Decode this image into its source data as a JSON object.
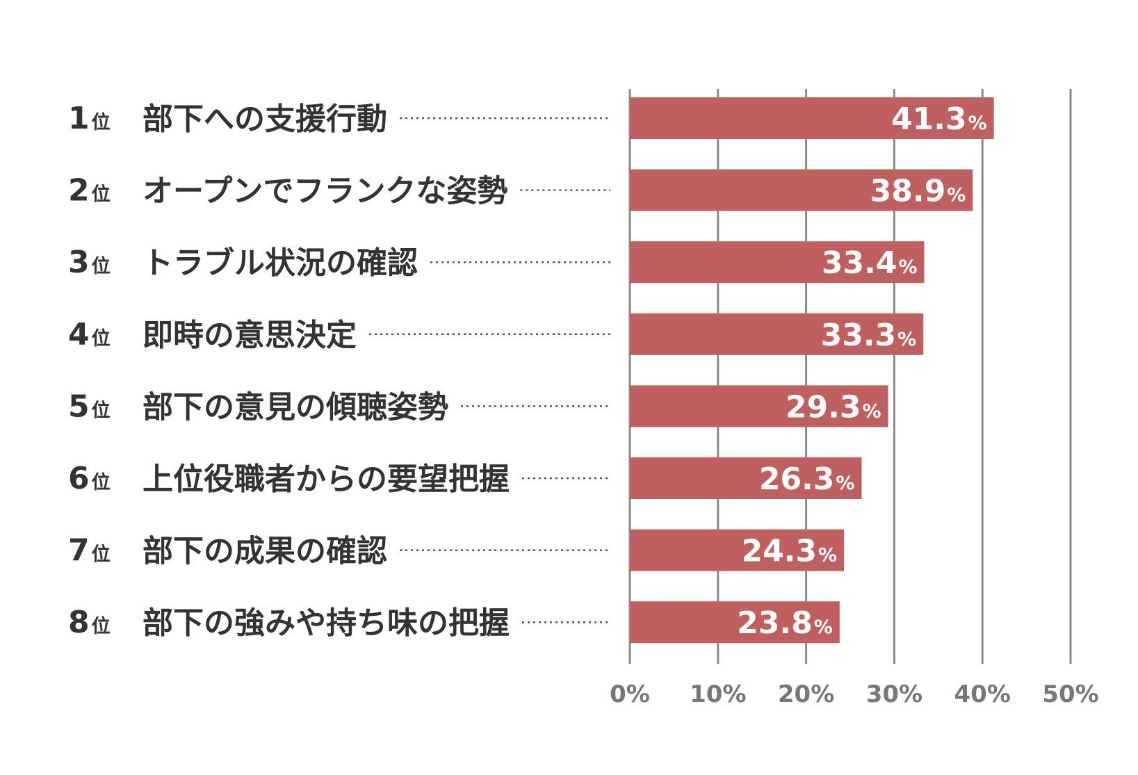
{
  "chart_data": {
    "type": "bar",
    "orientation": "horizontal",
    "title": "",
    "xlabel": "",
    "ylabel": "",
    "rank_suffix": "位",
    "ranks": [
      "1",
      "2",
      "3",
      "4",
      "5",
      "6",
      "7",
      "8"
    ],
    "categories": [
      "部下への支援行動",
      "オープンでフランクな姿勢",
      "トラブル状況の確認",
      "即時の意思決定",
      "部下の意見の傾聴姿勢",
      "上位役職者からの要望把握",
      "部下の成果の確認",
      "部下の強みや持ち味の把握"
    ],
    "values": [
      41.3,
      38.9,
      33.4,
      33.3,
      29.3,
      26.3,
      24.3,
      23.8
    ],
    "value_labels": [
      "41.3",
      "38.9",
      "33.4",
      "33.3",
      "29.3",
      "26.3",
      "24.3",
      "23.8"
    ],
    "value_unit": "%",
    "xlim": [
      0,
      50
    ],
    "x_ticks": [
      0,
      10,
      20,
      30,
      40,
      50
    ],
    "x_tick_labels": [
      "0%",
      "10%",
      "20%",
      "30%",
      "40%",
      "50%"
    ],
    "grid": true,
    "legend": "none",
    "colors": {
      "bar": "#c05f5f",
      "grid": "#8a8a8a",
      "text": "#333333",
      "tick_text": "#777777",
      "value_text": "#ffffff",
      "leader": "#555555"
    }
  }
}
